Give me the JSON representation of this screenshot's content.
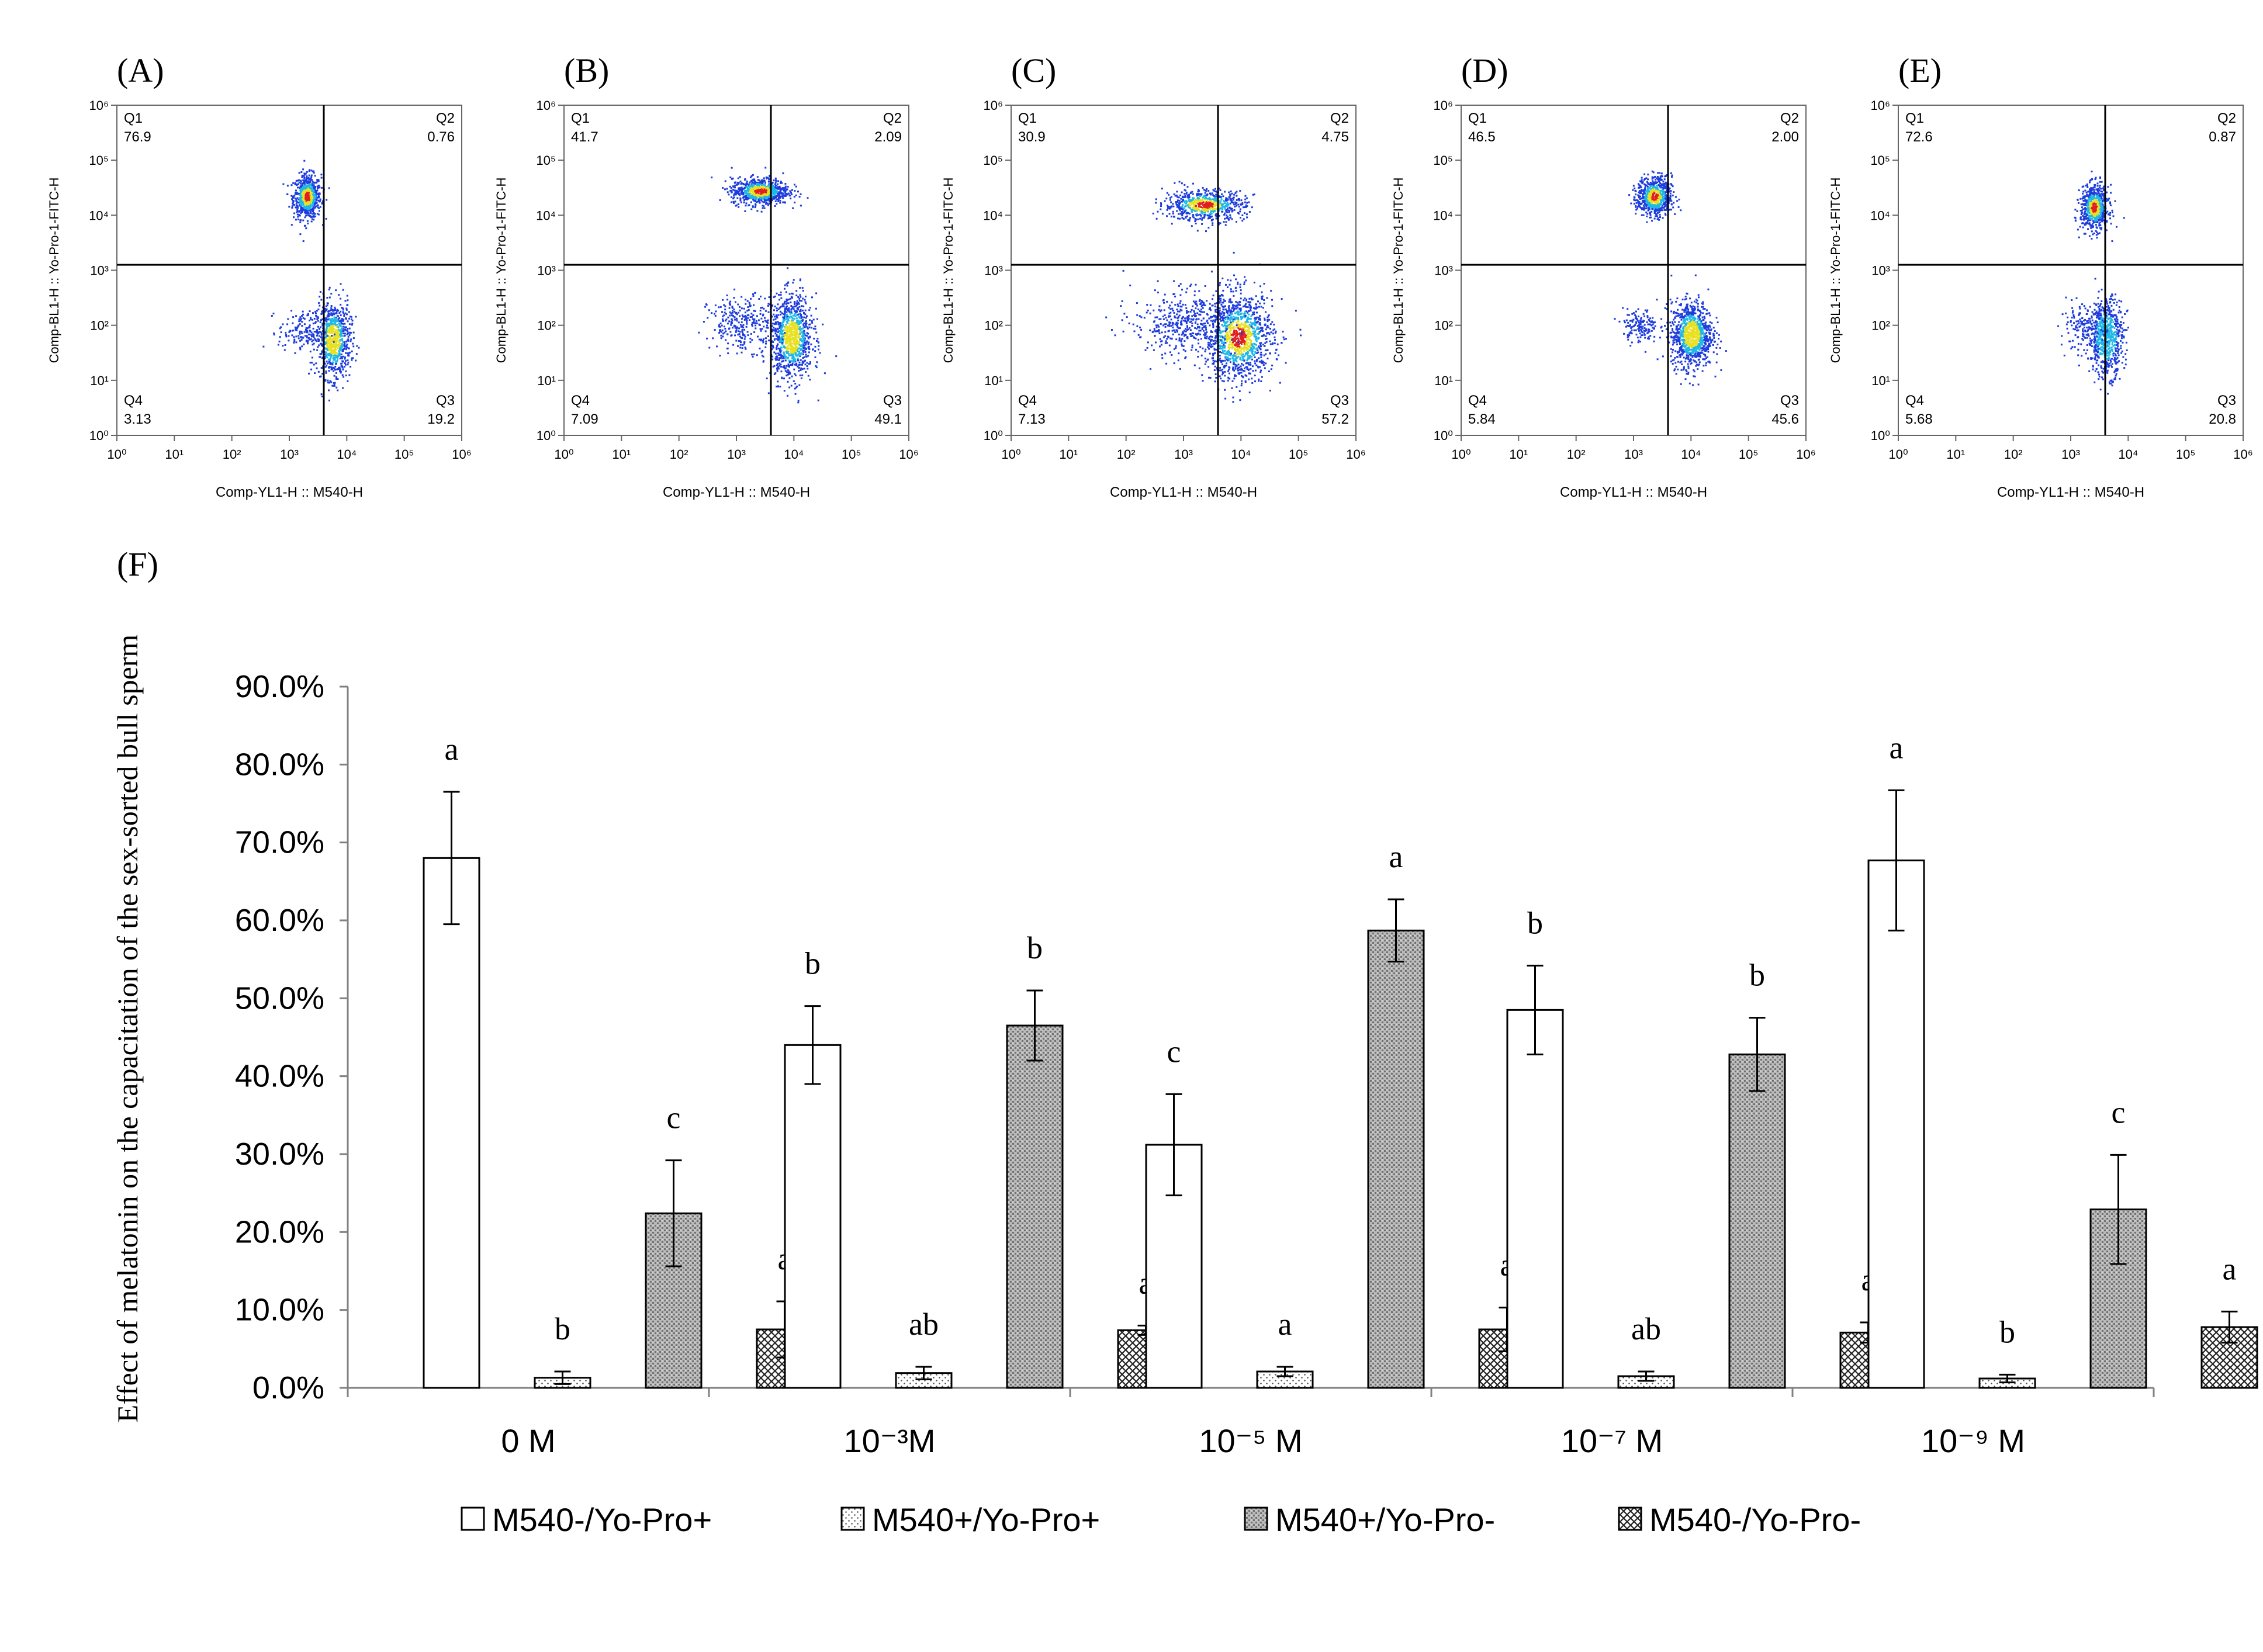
{
  "colors": {
    "axis": "#808080",
    "bar_stroke": "#000000",
    "error_bar": "#000000",
    "flow_cold": "#1e3cdc",
    "flow_mid": "#1fb8e6",
    "flow_warm": "#e8e020",
    "flow_hot": "#e02020",
    "flow_gate": "#000000",
    "background": "#ffffff"
  },
  "flow_panels": [
    {
      "label": "(A)",
      "q1": "76.9",
      "q2": "0.76",
      "q3": "19.2",
      "q4": "3.13",
      "x_axis_label": "Comp-YL1-H :: M540-H",
      "y_axis_label": "Comp-BL1-H :: Yo-Pro-1-FITC-H",
      "clusters": [
        {
          "x": 3.3,
          "y": 4.35,
          "sx": 0.12,
          "sy": 0.2,
          "n": 700,
          "core": "hot"
        },
        {
          "x": 3.75,
          "y": 1.75,
          "sx": 0.15,
          "sy": 0.35,
          "n": 800,
          "core": "warm"
        },
        {
          "x": 3.2,
          "y": 1.9,
          "sx": 0.2,
          "sy": 0.18,
          "n": 150,
          "core": "none"
        }
      ]
    },
    {
      "label": "(B)",
      "q1": "41.7",
      "q2": "2.09",
      "q3": "49.1",
      "q4": "7.09",
      "x_axis_label": "Comp-YL1-H :: M540-H",
      "y_axis_label": "Comp-BL1-H :: Yo-Pro-1-FITC-H",
      "clusters": [
        {
          "x": 3.4,
          "y": 4.45,
          "sx": 0.25,
          "sy": 0.12,
          "n": 800,
          "core": "hot"
        },
        {
          "x": 3.95,
          "y": 1.8,
          "sx": 0.18,
          "sy": 0.38,
          "n": 1000,
          "core": "warm"
        },
        {
          "x": 3.1,
          "y": 2.05,
          "sx": 0.3,
          "sy": 0.25,
          "n": 300,
          "core": "none"
        }
      ]
    },
    {
      "label": "(C)",
      "q1": "30.9",
      "q2": "4.75",
      "q3": "57.2",
      "q4": "7.13",
      "x_axis_label": "Comp-YL1-H :: M540-H",
      "y_axis_label": "Comp-BL1-H :: Yo-Pro-1-FITC-H",
      "clusters": [
        {
          "x": 3.35,
          "y": 4.2,
          "sx": 0.35,
          "sy": 0.14,
          "n": 700,
          "core": "hot"
        },
        {
          "x": 3.95,
          "y": 1.8,
          "sx": 0.3,
          "sy": 0.4,
          "n": 1200,
          "core": "hot"
        },
        {
          "x": 3.0,
          "y": 2.05,
          "sx": 0.45,
          "sy": 0.3,
          "n": 450,
          "core": "none"
        }
      ]
    },
    {
      "label": "(D)",
      "q1": "46.5",
      "q2": "2.00",
      "q3": "45.6",
      "q4": "5.84",
      "x_axis_label": "Comp-YL1-H :: M540-H",
      "y_axis_label": "Comp-BL1-H :: Yo-Pro-1-FITC-H",
      "clusters": [
        {
          "x": 3.35,
          "y": 4.35,
          "sx": 0.15,
          "sy": 0.18,
          "n": 700,
          "core": "hot"
        },
        {
          "x": 4.0,
          "y": 1.85,
          "sx": 0.18,
          "sy": 0.3,
          "n": 1000,
          "core": "warm"
        },
        {
          "x": 3.1,
          "y": 2.0,
          "sx": 0.15,
          "sy": 0.15,
          "n": 150,
          "core": "none"
        }
      ]
    },
    {
      "label": "(E)",
      "q1": "72.6",
      "q2": "0.87",
      "q3": "20.8",
      "q4": "5.68",
      "x_axis_label": "Comp-YL1-H :: M540-H",
      "y_axis_label": "Comp-BL1-H :: Yo-Pro-1-FITC-H",
      "clusters": [
        {
          "x": 3.4,
          "y": 4.15,
          "sx": 0.12,
          "sy": 0.2,
          "n": 700,
          "core": "hot"
        },
        {
          "x": 3.6,
          "y": 1.8,
          "sx": 0.15,
          "sy": 0.35,
          "n": 700,
          "core": "mid"
        },
        {
          "x": 3.2,
          "y": 1.95,
          "sx": 0.2,
          "sy": 0.2,
          "n": 150,
          "core": "none"
        }
      ]
    }
  ],
  "flow_axes": {
    "x_ticks": [
      "10⁰",
      "10¹",
      "10²",
      "10³",
      "10⁴",
      "10⁵",
      "10⁶"
    ],
    "y_ticks": [
      "10⁰",
      "10¹",
      "10²",
      "10³",
      "10⁴",
      "10⁵",
      "10⁶"
    ],
    "quadrants": [
      "Q1",
      "Q2",
      "Q3",
      "Q4"
    ]
  },
  "chart_data": {
    "type": "bar",
    "panel_label": "(F)",
    "ylabel": "Effect of melatonin on the capacitation of the sex-sorted bull sperm",
    "xlabel": "",
    "ylim": [
      0,
      0.9
    ],
    "yticks": [
      "0.0%",
      "10.0%",
      "20.0%",
      "30.0%",
      "40.0%",
      "50.0%",
      "60.0%",
      "70.0%",
      "80.0%",
      "90.0%"
    ],
    "categories": [
      "0 M",
      "10⁻³M",
      "10⁻⁵ M",
      "10⁻⁷ M",
      "10⁻⁹ M"
    ],
    "series": [
      {
        "name": "M540-/Yo-Pro+",
        "pattern": "white",
        "values": [
          0.68,
          0.44,
          0.312,
          0.485,
          0.677
        ],
        "errors": [
          0.085,
          0.05,
          0.065,
          0.057,
          0.09
        ],
        "letters": [
          "a",
          "b",
          "c",
          "b",
          "a"
        ]
      },
      {
        "name": "M540+/Yo-Pro+",
        "pattern": "dotted",
        "values": [
          0.013,
          0.019,
          0.021,
          0.015,
          0.012
        ],
        "errors": [
          0.008,
          0.008,
          0.006,
          0.006,
          0.005
        ],
        "letters": [
          "b",
          "ab",
          "a",
          "ab",
          "b"
        ]
      },
      {
        "name": "M540+/Yo-Pro-",
        "pattern": "gray",
        "values": [
          0.224,
          0.465,
          0.587,
          0.428,
          0.229
        ],
        "errors": [
          0.068,
          0.045,
          0.04,
          0.047,
          0.07
        ],
        "letters": [
          "c",
          "b",
          "a",
          "b",
          "c"
        ]
      },
      {
        "name": "M540-/Yo-Pro-",
        "pattern": "cross",
        "values": [
          0.075,
          0.074,
          0.075,
          0.071,
          0.078
        ],
        "errors": [
          0.036,
          0.006,
          0.028,
          0.013,
          0.02
        ],
        "letters": [
          "a",
          "a",
          "a",
          "a",
          "a"
        ]
      }
    ]
  }
}
